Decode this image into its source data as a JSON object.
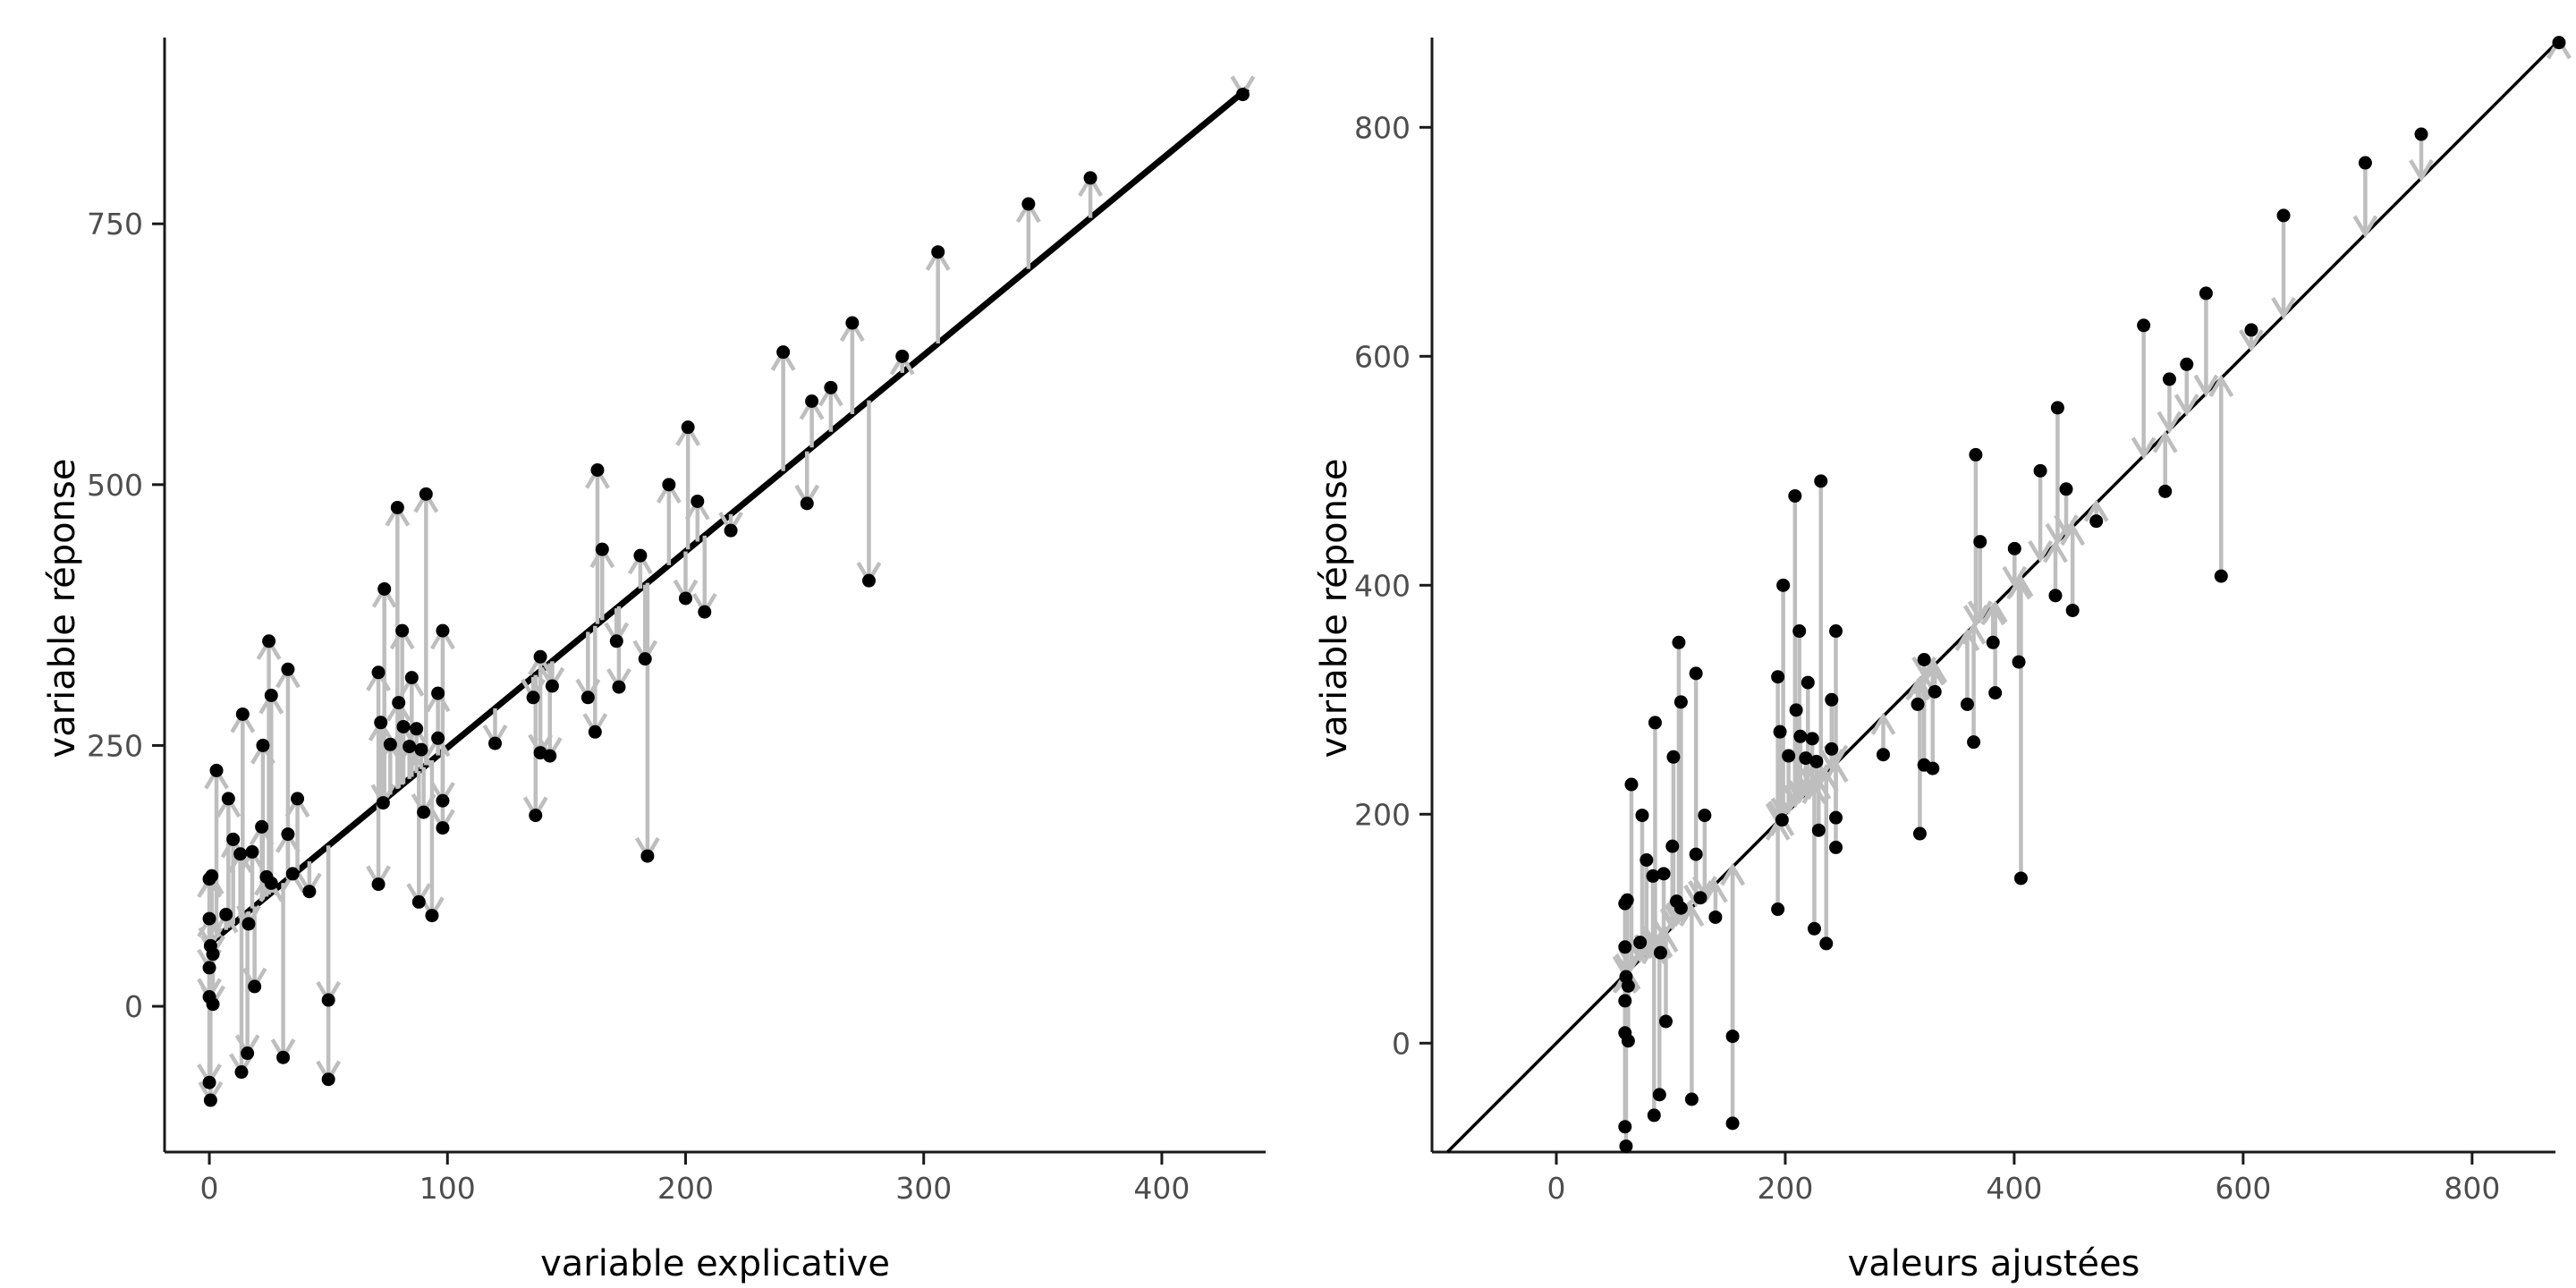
{
  "colors": {
    "background": "#ffffff",
    "point": "#000000",
    "arrow": "#bebebe",
    "line": "#000000",
    "axis": "#1a1a1a",
    "tick_label": "#4d4d4d",
    "title": "#000000"
  },
  "chart_data": [
    {
      "name": "left-panel",
      "type": "scatter",
      "title": "",
      "xlabel": "variable explicative",
      "ylabel": "variable réponse",
      "x_ticks": [
        0,
        100,
        200,
        300,
        400
      ],
      "y_ticks": [
        0,
        250,
        500,
        750
      ],
      "xlim": [
        -18.8,
        443.6
      ],
      "ylim": [
        -139.7,
        928.5
      ],
      "grid": false,
      "legend": false,
      "line": {
        "type": "regression",
        "intercept": 60,
        "slope": 1.88,
        "x_start": 0,
        "x_end": 436,
        "width": 7
      },
      "arrows": "line_to_point",
      "points": [
        [
          0,
          9
        ],
        [
          1.5,
          2
        ],
        [
          0,
          37
        ],
        [
          0.5,
          58
        ],
        [
          1.5,
          50
        ],
        [
          0,
          84
        ],
        [
          7,
          88
        ],
        [
          16.5,
          79
        ],
        [
          19,
          19
        ],
        [
          50,
          6
        ],
        [
          0,
          122
        ],
        [
          1,
          125
        ],
        [
          10,
          160
        ],
        [
          13,
          146
        ],
        [
          18,
          148
        ],
        [
          22,
          172
        ],
        [
          24,
          124
        ],
        [
          26,
          118
        ],
        [
          33,
          165
        ],
        [
          35,
          127
        ],
        [
          37,
          199
        ],
        [
          42,
          110
        ],
        [
          8,
          199
        ],
        [
          3,
          226
        ],
        [
          14,
          280
        ],
        [
          22.5,
          250
        ],
        [
          25,
          350
        ],
        [
          26,
          298
        ],
        [
          33,
          323
        ],
        [
          13.5,
          -63
        ],
        [
          16,
          -45
        ],
        [
          31,
          -49
        ],
        [
          0,
          -73
        ],
        [
          0.5,
          -90
        ],
        [
          50,
          -70
        ],
        [
          79,
          478
        ],
        [
          91,
          491
        ],
        [
          73.5,
          400
        ],
        [
          81,
          360
        ],
        [
          98,
          360
        ],
        [
          85,
          315
        ],
        [
          71,
          320
        ],
        [
          96,
          300
        ],
        [
          79.5,
          291
        ],
        [
          72,
          272
        ],
        [
          81.5,
          268
        ],
        [
          87,
          266
        ],
        [
          76,
          251
        ],
        [
          84,
          249
        ],
        [
          89,
          246
        ],
        [
          96,
          257
        ],
        [
          98,
          197
        ],
        [
          90,
          186
        ],
        [
          98,
          171
        ],
        [
          73,
          195
        ],
        [
          71,
          117
        ],
        [
          88,
          100
        ],
        [
          93.5,
          87
        ],
        [
          120,
          252
        ],
        [
          139,
          335
        ],
        [
          144,
          307
        ],
        [
          136,
          296
        ],
        [
          139,
          243
        ],
        [
          143,
          240
        ],
        [
          137,
          183
        ],
        [
          159,
          296
        ],
        [
          162,
          263
        ],
        [
          165,
          438
        ],
        [
          163,
          514
        ],
        [
          171,
          350
        ],
        [
          172,
          306
        ],
        [
          181,
          432
        ],
        [
          183,
          333
        ],
        [
          184,
          144
        ],
        [
          193,
          500
        ],
        [
          200,
          391
        ],
        [
          201,
          555
        ],
        [
          205,
          484
        ],
        [
          208,
          378
        ],
        [
          219,
          456
        ],
        [
          241,
          627
        ],
        [
          251,
          482
        ],
        [
          253,
          580
        ],
        [
          261,
          593
        ],
        [
          270,
          655
        ],
        [
          277,
          408
        ],
        [
          291,
          623
        ],
        [
          306,
          723
        ],
        [
          344,
          769
        ],
        [
          370,
          794
        ],
        [
          434,
          874
        ]
      ]
    },
    {
      "name": "right-panel",
      "type": "scatter",
      "title": "",
      "xlabel": "valeurs ajustées",
      "ylabel": "variable réponse",
      "x_ticks": [
        0,
        200,
        400,
        600,
        800
      ],
      "y_ticks": [
        0,
        200,
        400,
        600,
        800
      ],
      "xlim": [
        -108.6,
        872.8
      ],
      "ylim": [
        -95.1,
        878.4
      ],
      "grid": false,
      "legend": false,
      "line": {
        "type": "identity",
        "intercept": 0,
        "slope": 1,
        "width": 3.5
      },
      "arrows": "point_to_line",
      "points": [
        [
          60,
          9
        ],
        [
          62.8,
          2
        ],
        [
          60,
          37
        ],
        [
          60.9,
          58
        ],
        [
          62.8,
          50
        ],
        [
          60,
          84
        ],
        [
          73.2,
          88
        ],
        [
          91,
          79
        ],
        [
          95.7,
          19
        ],
        [
          154,
          6
        ],
        [
          60,
          122
        ],
        [
          61.9,
          125
        ],
        [
          78.8,
          160
        ],
        [
          84.4,
          146
        ],
        [
          93.8,
          148
        ],
        [
          101.4,
          172
        ],
        [
          105.1,
          124
        ],
        [
          108.9,
          118
        ],
        [
          122,
          165
        ],
        [
          125.8,
          127
        ],
        [
          129.6,
          199
        ],
        [
          139,
          110
        ],
        [
          75,
          199
        ],
        [
          65.6,
          226
        ],
        [
          86.3,
          280
        ],
        [
          102.3,
          250
        ],
        [
          107,
          350
        ],
        [
          108.9,
          298
        ],
        [
          122,
          323
        ],
        [
          85.4,
          -63
        ],
        [
          90.1,
          -45
        ],
        [
          118.3,
          -49
        ],
        [
          60,
          -73
        ],
        [
          60.9,
          -90
        ],
        [
          154,
          -70
        ],
        [
          208.5,
          478
        ],
        [
          231.1,
          491
        ],
        [
          198.2,
          400
        ],
        [
          212.3,
          360
        ],
        [
          244.2,
          360
        ],
        [
          219.8,
          315
        ],
        [
          193.5,
          320
        ],
        [
          240.5,
          300
        ],
        [
          209.5,
          291
        ],
        [
          195.4,
          272
        ],
        [
          213.2,
          268
        ],
        [
          223.6,
          266
        ],
        [
          202.9,
          251
        ],
        [
          217.9,
          249
        ],
        [
          227.3,
          246
        ],
        [
          240.5,
          257
        ],
        [
          244.2,
          197
        ],
        [
          229.2,
          186
        ],
        [
          244.2,
          171
        ],
        [
          197.2,
          195
        ],
        [
          193.5,
          117
        ],
        [
          225.4,
          100
        ],
        [
          235.8,
          87
        ],
        [
          285.6,
          252
        ],
        [
          321.3,
          335
        ],
        [
          330.7,
          307
        ],
        [
          315.7,
          296
        ],
        [
          321.3,
          243
        ],
        [
          328.8,
          240
        ],
        [
          317.6,
          183
        ],
        [
          359,
          296
        ],
        [
          364.6,
          263
        ],
        [
          370.2,
          438
        ],
        [
          366.4,
          514
        ],
        [
          381.5,
          350
        ],
        [
          383.4,
          306
        ],
        [
          400.3,
          432
        ],
        [
          404,
          333
        ],
        [
          405.9,
          144
        ],
        [
          422.8,
          500
        ],
        [
          436,
          391
        ],
        [
          437.9,
          555
        ],
        [
          445.4,
          484
        ],
        [
          451,
          378
        ],
        [
          471.7,
          456
        ],
        [
          513.1,
          627
        ],
        [
          531.9,
          482
        ],
        [
          535.6,
          580
        ],
        [
          550.7,
          593
        ],
        [
          567.6,
          655
        ],
        [
          580.8,
          408
        ],
        [
          607.1,
          623
        ],
        [
          635.3,
          723
        ],
        [
          706.7,
          769
        ],
        [
          755.6,
          794
        ],
        [
          875.9,
          874
        ]
      ]
    }
  ]
}
